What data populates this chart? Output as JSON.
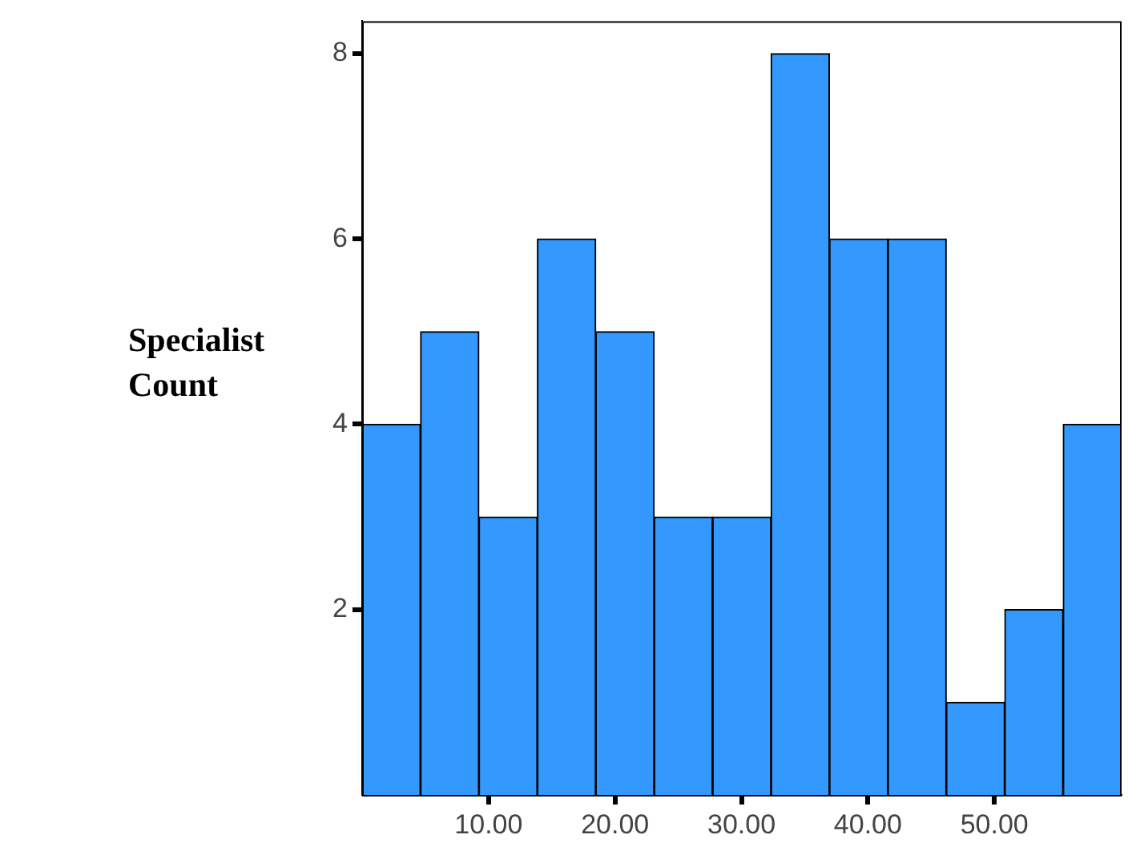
{
  "chart_data": {
    "type": "histogram",
    "ylabel": "Specialist Count",
    "bins": [
      0,
      4.62,
      9.24,
      13.86,
      18.48,
      23.1,
      27.72,
      32.34,
      36.96,
      41.58,
      46.2,
      50.82,
      55.44,
      60.06
    ],
    "values": [
      4,
      5,
      3,
      6,
      5,
      3,
      3,
      8,
      6,
      6,
      1,
      2,
      4
    ],
    "color": "#3399ff",
    "xlim": [
      0,
      60.06
    ],
    "ylim": [
      0,
      8.35
    ],
    "xticks": [
      {
        "value": 10,
        "label": "10.00"
      },
      {
        "value": 20,
        "label": "20.00"
      },
      {
        "value": 30,
        "label": "30.00"
      },
      {
        "value": 40,
        "label": "40.00"
      },
      {
        "value": 50,
        "label": "50.00"
      }
    ],
    "yticks": [
      2,
      4,
      6,
      8
    ],
    "grid": false,
    "legend": false
  }
}
